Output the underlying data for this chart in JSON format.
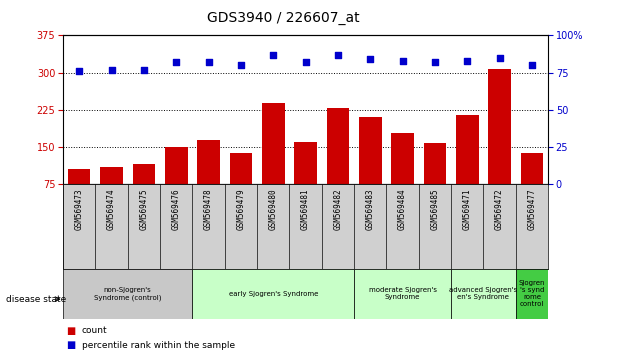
{
  "title": "GDS3940 / 226607_at",
  "samples": [
    "GSM569473",
    "GSM569474",
    "GSM569475",
    "GSM569476",
    "GSM569478",
    "GSM569479",
    "GSM569480",
    "GSM569481",
    "GSM569482",
    "GSM569483",
    "GSM569484",
    "GSM569485",
    "GSM569471",
    "GSM569472",
    "GSM569477"
  ],
  "counts": [
    105,
    110,
    115,
    150,
    163,
    138,
    238,
    160,
    228,
    210,
    178,
    158,
    215,
    308,
    138
  ],
  "percentiles": [
    76,
    77,
    77,
    82,
    82,
    80,
    87,
    82,
    87,
    84,
    83,
    82,
    83,
    85,
    80
  ],
  "bar_color": "#cc0000",
  "dot_color": "#0000cc",
  "ylim_left": [
    75,
    375
  ],
  "ylim_right": [
    0,
    100
  ],
  "yticks_left": [
    75,
    150,
    225,
    300,
    375
  ],
  "yticks_right": [
    0,
    25,
    50,
    75,
    100
  ],
  "groups": [
    {
      "label": "non-Sjogren's\nSyndrome (control)",
      "start": 0,
      "end": 4,
      "color": "#c8c8c8"
    },
    {
      "label": "early Sjogren's Syndrome",
      "start": 4,
      "end": 9,
      "color": "#c8ffc8"
    },
    {
      "label": "moderate Sjogren's\nSyndrome",
      "start": 9,
      "end": 12,
      "color": "#c8ffc8"
    },
    {
      "label": "advanced Sjogren's\nen's Syndrome",
      "start": 12,
      "end": 14,
      "color": "#c8ffc8"
    },
    {
      "label": "Sjogren\n's synd\nrome\ncontrol",
      "start": 14,
      "end": 15,
      "color": "#44cc44"
    }
  ],
  "background_color": "#ffffff",
  "plot_bg_color": "#ffffff",
  "title_fontsize": 10,
  "left_tick_color": "#cc0000",
  "right_tick_color": "#0000cc"
}
